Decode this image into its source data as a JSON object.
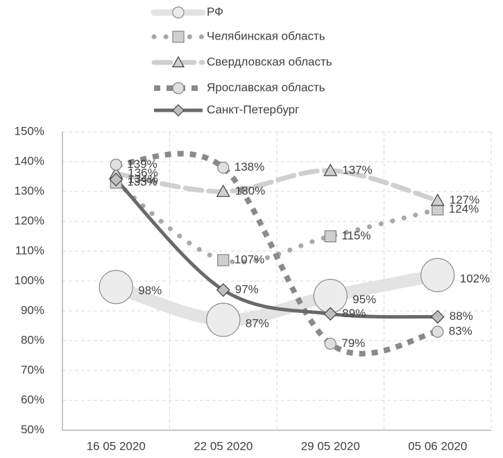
{
  "chart_data": {
    "type": "line",
    "categories": [
      "16 05 2020",
      "22 05 2020",
      "29 05 2020",
      "05 06 2020"
    ],
    "ylim": [
      50,
      150
    ],
    "yticks": [
      {
        "value": 50,
        "label": "50%"
      },
      {
        "value": 60,
        "label": "60%"
      },
      {
        "value": 70,
        "label": "70%"
      },
      {
        "value": 80,
        "label": "80%"
      },
      {
        "value": 90,
        "label": "90%"
      },
      {
        "value": 100,
        "label": "100%"
      },
      {
        "value": 110,
        "label": "110%"
      },
      {
        "value": 120,
        "label": "120%"
      },
      {
        "value": 130,
        "label": "130%"
      },
      {
        "value": 140,
        "label": "140%"
      },
      {
        "value": 150,
        "label": "150%"
      }
    ],
    "grid": true,
    "series": [
      {
        "name": "РФ",
        "color": "#e3e3e3",
        "values": [
          98,
          87,
          95,
          102
        ],
        "value_labels": [
          "98%",
          "87%",
          "95%",
          "102%"
        ]
      },
      {
        "name": "Челябинская область",
        "color": "#a8a8a8",
        "values": [
          133,
          107,
          115,
          124
        ],
        "value_labels": [
          "133%",
          "107%",
          "115%",
          "124%"
        ]
      },
      {
        "name": "Свердловская область",
        "color": "#cfcfcf",
        "values": [
          136,
          130,
          137,
          127
        ],
        "value_labels": [
          "136%",
          "130%",
          "137%",
          "127%"
        ]
      },
      {
        "name": "Ярославская область",
        "color": "#8a8a8a",
        "values": [
          139,
          138,
          79,
          83
        ],
        "value_labels": [
          "139%",
          "138%",
          "79%",
          "83%"
        ]
      },
      {
        "name": "Санкт-Петербург",
        "color": "#6a6a6a",
        "values": [
          134,
          97,
          89,
          88
        ],
        "value_labels": [
          "134%",
          "97%",
          "89%",
          "88%"
        ]
      }
    ]
  }
}
